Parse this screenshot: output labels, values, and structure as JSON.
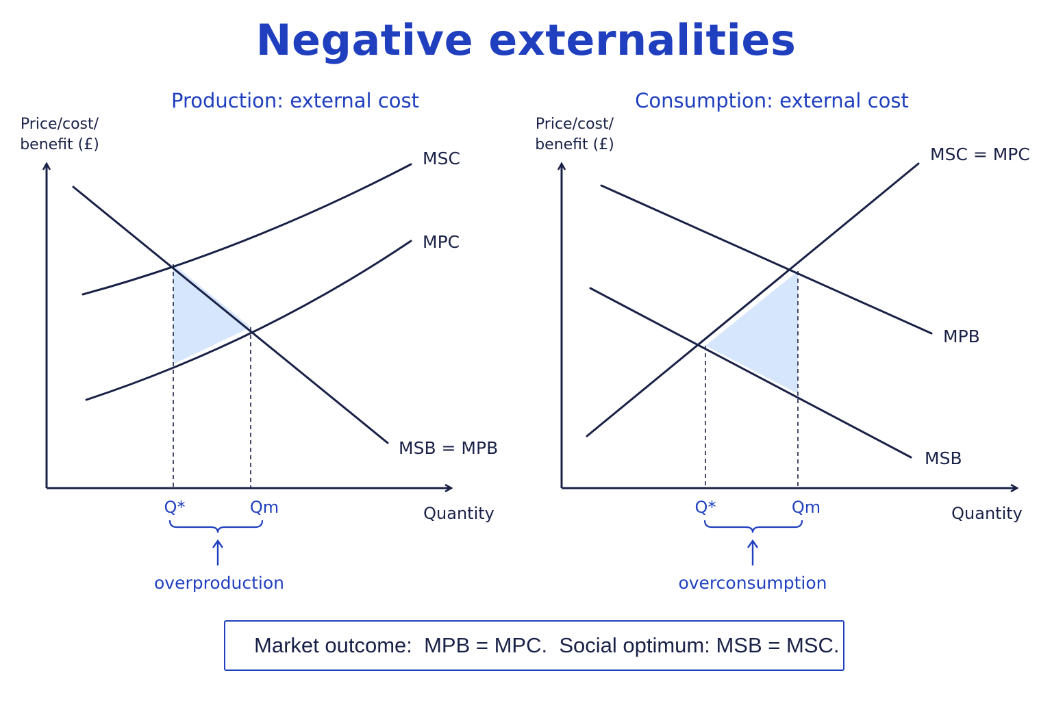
{
  "title": "Negative externalities",
  "panels": [
    {
      "title": "Production: external cost",
      "y_axis_label": [
        "Price/cost/",
        "benefit (£)"
      ],
      "x_axis_label": "Quantity",
      "curves": [
        "MSC",
        "MPC",
        "MSB = MPB"
      ],
      "q_star": "Q*",
      "q_market": "Qm",
      "note": "overproduction"
    },
    {
      "title": "Consumption: external cost",
      "y_axis_label": [
        "Price/cost/",
        "benefit (£)"
      ],
      "x_axis_label": "Quantity",
      "curves": [
        "MSC = MPC",
        "MPB",
        "MSB"
      ],
      "q_star": "Q*",
      "q_market": "Qm",
      "note": "overconsumption"
    }
  ],
  "footer": "Market outcome:  MPB = MPC.  Social optimum: MSB = MSC.",
  "colors": {
    "accent": "#1f3fbf",
    "line": "#1a2147",
    "shade": "#d6e6fc"
  }
}
